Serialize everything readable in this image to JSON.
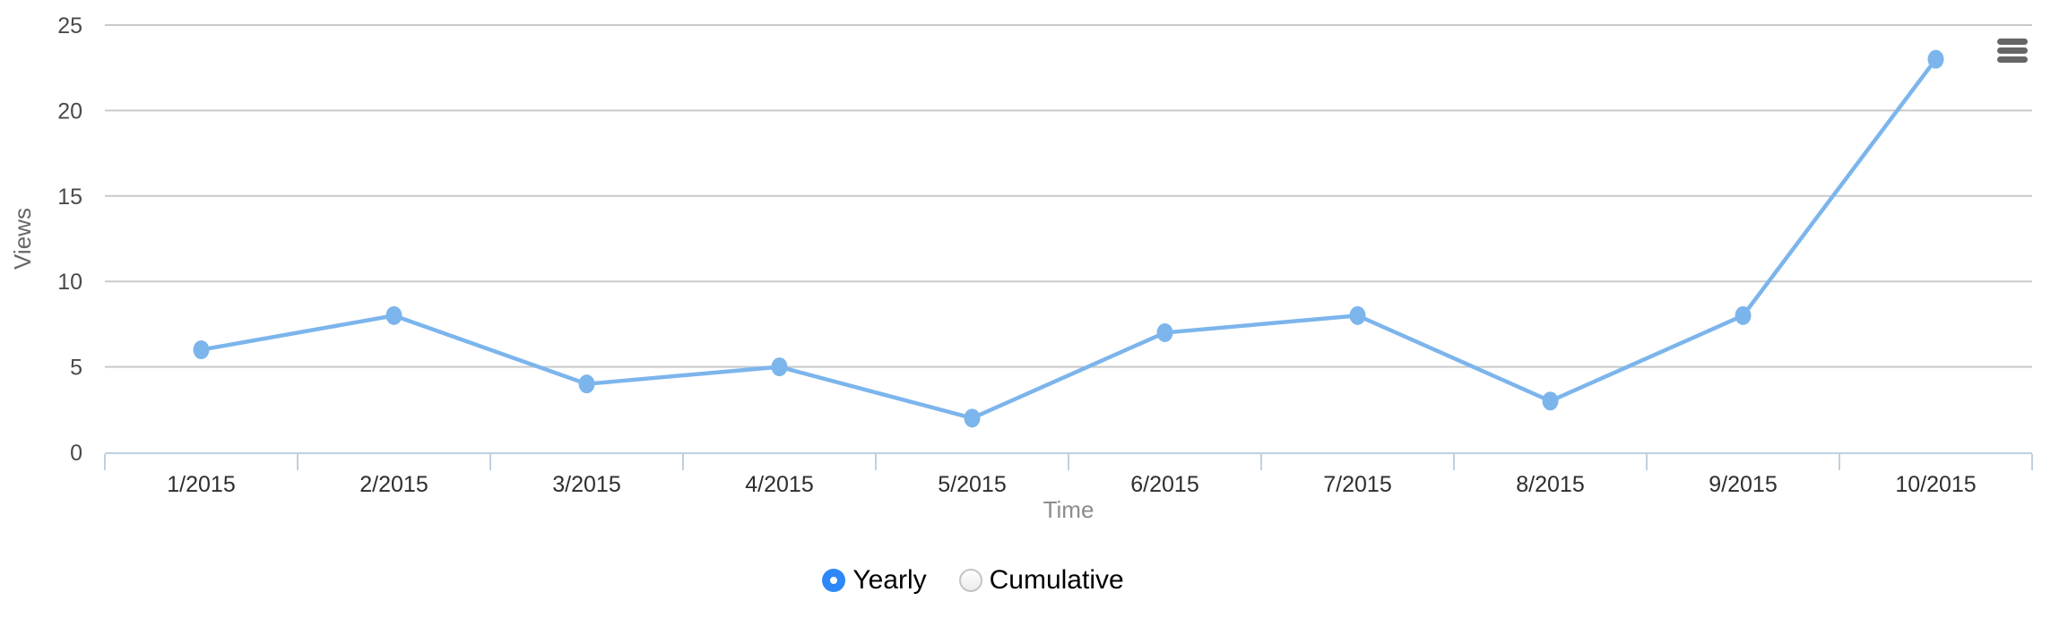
{
  "page": {
    "background": "#ffffff"
  },
  "chart_data": {
    "type": "line",
    "categories": [
      "1/2015",
      "2/2015",
      "3/2015",
      "4/2015",
      "5/2015",
      "6/2015",
      "7/2015",
      "8/2015",
      "9/2015",
      "10/2015"
    ],
    "values": [
      6,
      8,
      4,
      5,
      2,
      7,
      8,
      3,
      8,
      23
    ],
    "xlabel": "Time",
    "ylabel": "Views",
    "ylim": [
      0,
      25
    ],
    "yticks": [
      0,
      5,
      10,
      15,
      20,
      25
    ],
    "grid": "horizontal",
    "legend": "none",
    "tick_placement": "between-categories",
    "marker": "circle"
  },
  "colors": {
    "series": "#7cb5ec",
    "grid_line": "#c9c9c9",
    "axis_line": "#c0d0e0",
    "x_tick_label": "#2e2e2e",
    "y_tick_label": "#4a4a4a",
    "y_axis_title": "#666666",
    "x_axis_title": "#8c8c8c",
    "menu_icon": "#666666",
    "radio_selected": "#2e87f7"
  },
  "menu": {
    "icon": "hamburger-menu-icon"
  },
  "controls": {
    "options": [
      {
        "label": "Yearly",
        "selected": true
      },
      {
        "label": "Cumulative",
        "selected": false
      }
    ]
  }
}
